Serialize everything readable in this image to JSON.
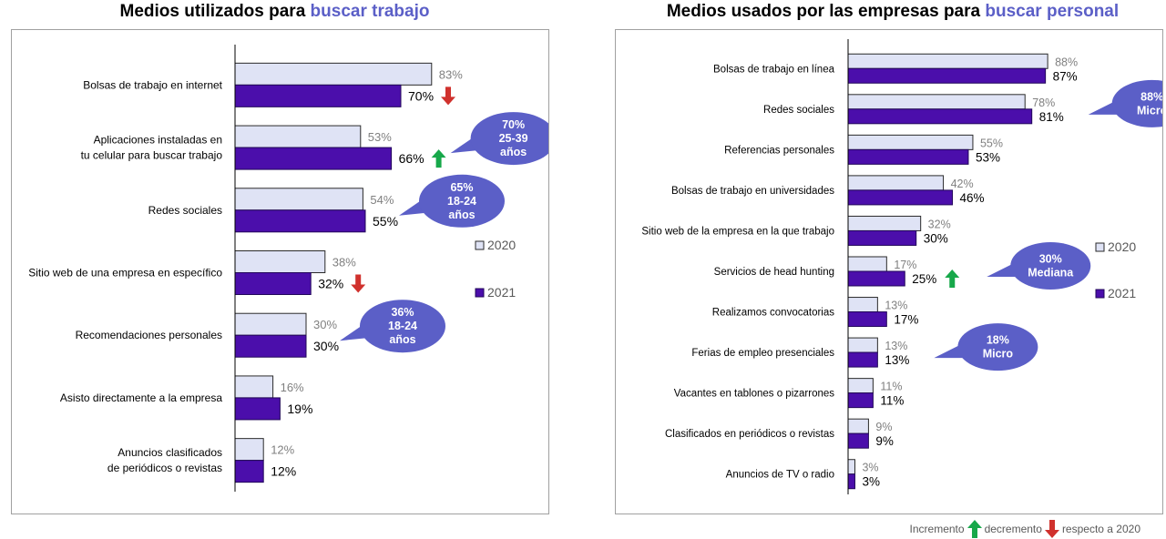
{
  "charts_meta": {
    "legend": {
      "series_2020": "2020",
      "series_2021": "2021"
    }
  },
  "chart_data": [
    {
      "type": "bar",
      "orientation": "horizontal",
      "title_prefix": "Medios utilizados para",
      "title_highlight": "buscar trabajo",
      "categories": [
        "Bolsas de trabajo en internet",
        "Aplicaciones instaladas en\ntu celular para buscar trabajo",
        "Redes sociales",
        "Sitio web de una empresa en específico",
        "Recomendaciones personales",
        "Asisto directamente a la empresa",
        "Anuncios clasificados\nde periódicos o revistas"
      ],
      "series": [
        {
          "name": "2020",
          "values": [
            83,
            53,
            54,
            38,
            30,
            16,
            12
          ]
        },
        {
          "name": "2021",
          "values": [
            70,
            66,
            55,
            32,
            30,
            19,
            12
          ]
        }
      ],
      "value_suffix": "%",
      "trend": [
        "down",
        "up",
        null,
        "down",
        null,
        null,
        null
      ],
      "callouts": [
        {
          "row": 1,
          "lines": [
            "70%",
            "25-39",
            "años"
          ]
        },
        {
          "row": 2,
          "lines": [
            "65%",
            "18-24",
            "años"
          ]
        },
        {
          "row": 4,
          "lines": [
            "36%",
            "18-24",
            "años"
          ]
        }
      ],
      "xlim": [
        0,
        100
      ],
      "legend_position": "right"
    },
    {
      "type": "bar",
      "orientation": "horizontal",
      "title_prefix": "Medios usados por las empresas para",
      "title_highlight": "buscar personal",
      "categories": [
        "Bolsas de trabajo en línea",
        "Redes sociales",
        "Referencias personales",
        "Bolsas de trabajo en universidades",
        "Sitio web de la empresa en la que trabajo",
        "Servicios de head hunting",
        "Realizamos convocatorias",
        "Ferias de empleo presenciales",
        "Vacantes en tablones o pizarrones",
        "Clasificados en periódicos o revistas",
        "Anuncios de TV o radio"
      ],
      "series": [
        {
          "name": "2020",
          "values": [
            88,
            78,
            55,
            42,
            32,
            17,
            13,
            13,
            11,
            9,
            3
          ]
        },
        {
          "name": "2021",
          "values": [
            87,
            81,
            53,
            46,
            30,
            25,
            17,
            13,
            11,
            9,
            3
          ]
        }
      ],
      "value_suffix": "%",
      "trend": [
        null,
        null,
        null,
        null,
        null,
        "up",
        null,
        null,
        null,
        null,
        null
      ],
      "callouts": [
        {
          "row": 1,
          "lines": [
            "88%",
            "Micro"
          ]
        },
        {
          "row": 5,
          "lines": [
            "30%",
            "Mediana"
          ]
        },
        {
          "row": 7,
          "lines": [
            "18%",
            "Micro"
          ]
        }
      ],
      "xlim": [
        0,
        100
      ],
      "legend_position": "right"
    }
  ],
  "footer": {
    "increment": "Incremento",
    "decrement": "decremento",
    "respect": "respecto a 2020"
  },
  "colors": {
    "bar_2020": "#dfe3f5",
    "bar_2020_border": "#2a2a2a",
    "bar_2021": "#4b0eab",
    "bar_2021_border": "#22075a",
    "highlight_text": "#5b5fc7",
    "callout": "#5b5fc7",
    "arrow_up": "#17a84a",
    "arrow_down": "#d0312d",
    "label_2020": "#808080"
  }
}
